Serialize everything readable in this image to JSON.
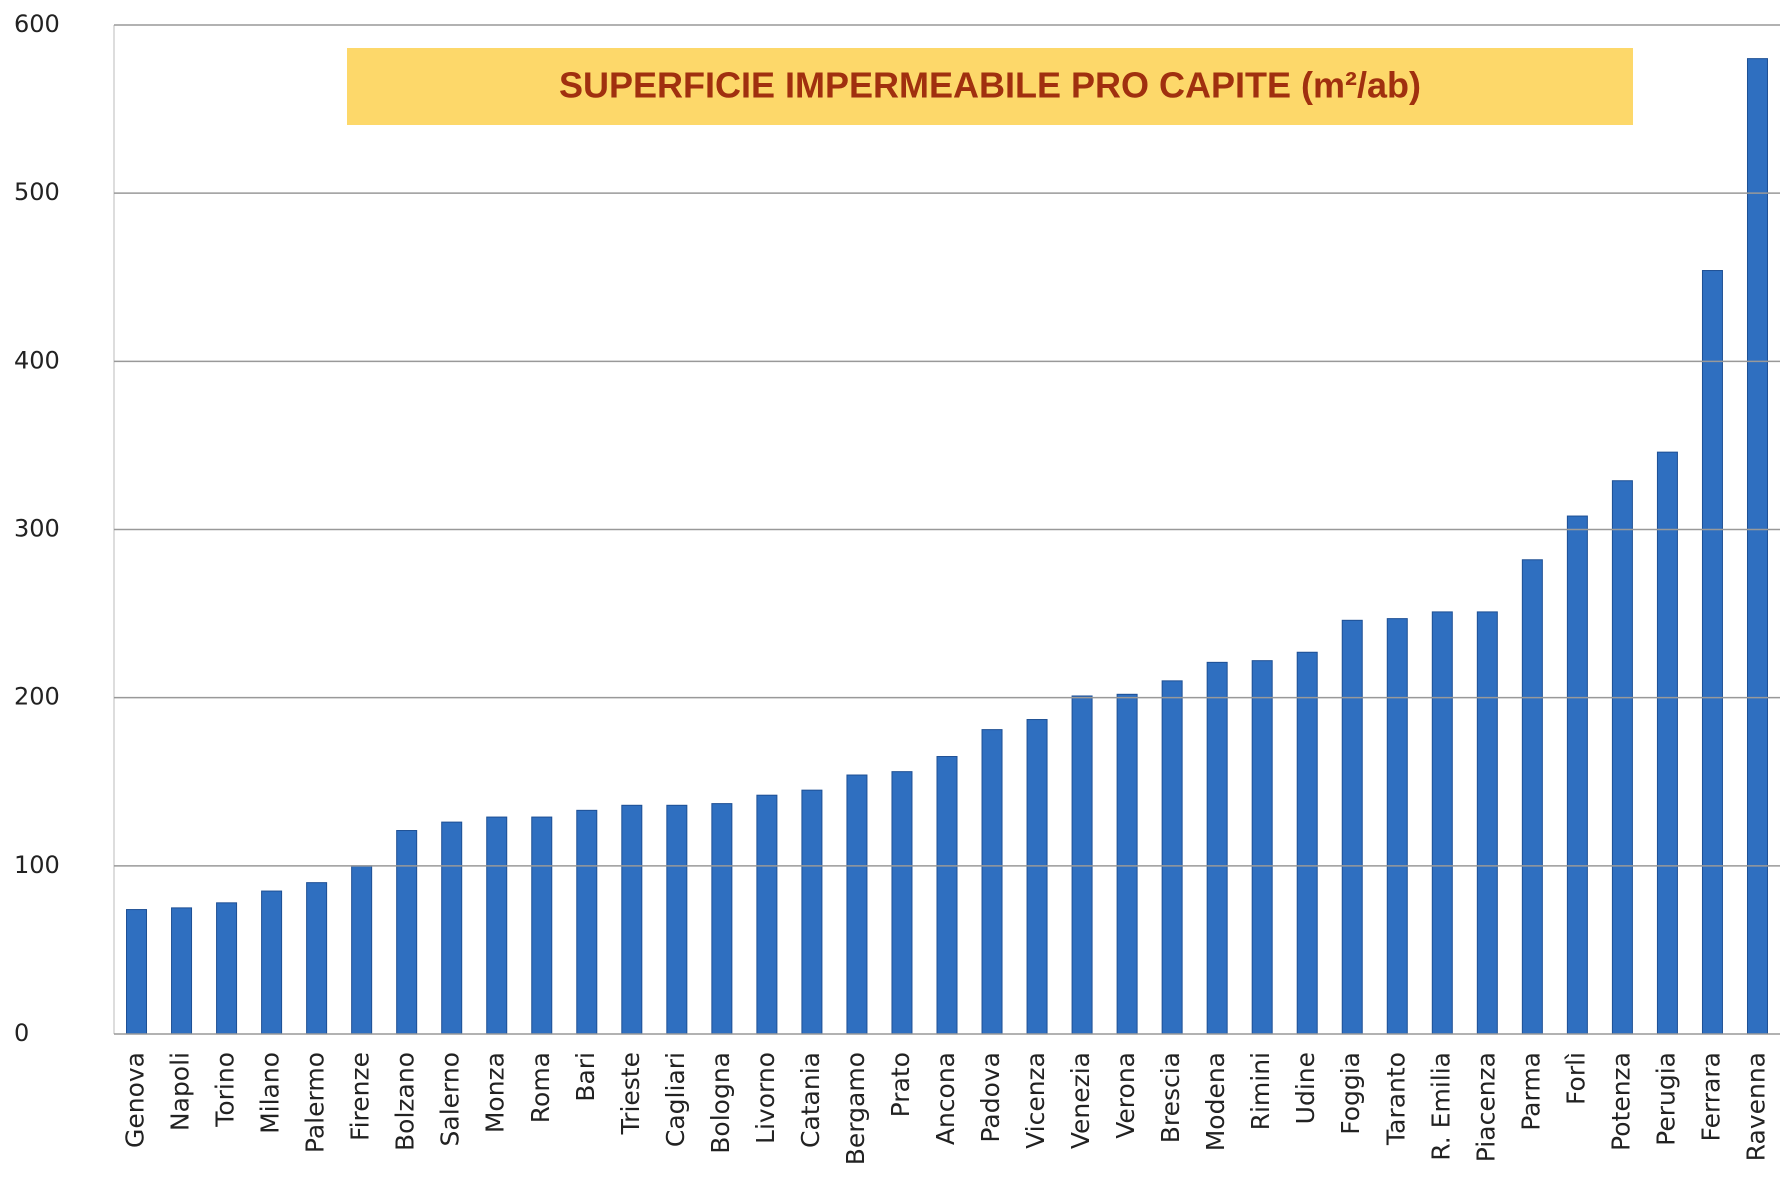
{
  "chart_data": {
    "type": "bar",
    "title": "SUPERFICIE IMPERMEABILE PRO CAPITE (m²/ab)",
    "categories": [
      "Genova",
      "Napoli",
      "Torino",
      "Milano",
      "Palermo",
      "Firenze",
      "Bolzano",
      "Salerno",
      "Monza",
      "Roma",
      "Bari",
      "Trieste",
      "Cagliari",
      "Bologna",
      "Livorno",
      "Catania",
      "Bergamo",
      "Prato",
      "Ancona",
      "Padova",
      "Vicenza",
      "Venezia",
      "Verona",
      "Brescia",
      "Modena",
      "Rimini",
      "Udine",
      "Foggia",
      "Taranto",
      "R. Emilia",
      "Piacenza",
      "Parma",
      "Forlì",
      "Potenza",
      "Perugia",
      "Ferrara",
      "Ravenna"
    ],
    "values": [
      74,
      75,
      78,
      85,
      90,
      100,
      121,
      126,
      129,
      129,
      133,
      136,
      136,
      137,
      142,
      145,
      154,
      156,
      165,
      181,
      187,
      201,
      202,
      210,
      221,
      222,
      227,
      246,
      247,
      251,
      251,
      282,
      308,
      329,
      346,
      454,
      580
    ],
    "color": "#2f6fc0",
    "ylim": [
      0,
      600
    ],
    "yticks": [
      0,
      100,
      200,
      300,
      400,
      500,
      600
    ],
    "grid": true
  }
}
